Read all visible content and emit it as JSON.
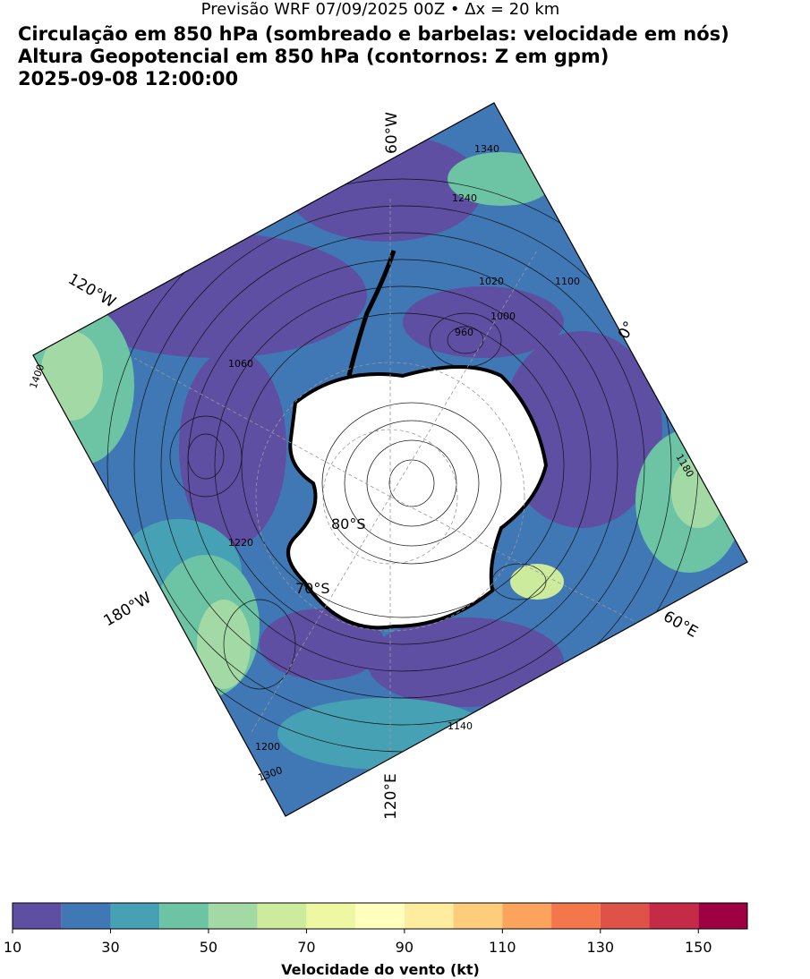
{
  "header": {
    "supertitle": "Previsão WRF 07/09/2025 00Z • Δx = 20 km",
    "title_line_1": "Circulação em 850 hPa (sombreado e barbelas: velocidade em nós)",
    "title_line_2": "Altura Geopotencial em 850 hPa (contornos: Z em gpm)",
    "title_line_3": "2025-09-08 12:00:00"
  },
  "map": {
    "longitude_labels": [
      "60°W",
      "120°W",
      "180°W",
      "120°E",
      "60°E",
      "0°"
    ],
    "latitude_labels": [
      "80°S",
      "70°S"
    ],
    "contour_labels": [
      "1400",
      "1300",
      "1200",
      "1140",
      "1000",
      "960",
      "1100",
      "1060",
      "1020",
      "1340",
      "1240",
      "1220",
      "1180"
    ],
    "colors": {
      "ocean_calm": "#5e4fa2",
      "land_ice": "#ffffff",
      "coastline": "#000000"
    }
  },
  "chart_data": {
    "type": "heatmap",
    "title": "Circulação em 850 hPa (sombreado e barbelas: velocidade em nós)",
    "colorbar": {
      "label": "Velocidade do vento (kt)",
      "bounds": [
        10,
        20,
        30,
        40,
        50,
        60,
        70,
        80,
        90,
        100,
        110,
        120,
        130,
        140,
        150,
        160
      ],
      "tick_labels": [
        "10",
        "30",
        "50",
        "70",
        "90",
        "110",
        "130",
        "150"
      ],
      "colors": [
        "#5e4fa2",
        "#3f78b5",
        "#47a1b5",
        "#6cc4a5",
        "#a3d9a4",
        "#cdeb9c",
        "#eef8a3",
        "#ffffbe",
        "#feec9f",
        "#fdcd7c",
        "#fca45e",
        "#f3774a",
        "#de5249",
        "#c52a46",
        "#9e0142"
      ]
    }
  }
}
